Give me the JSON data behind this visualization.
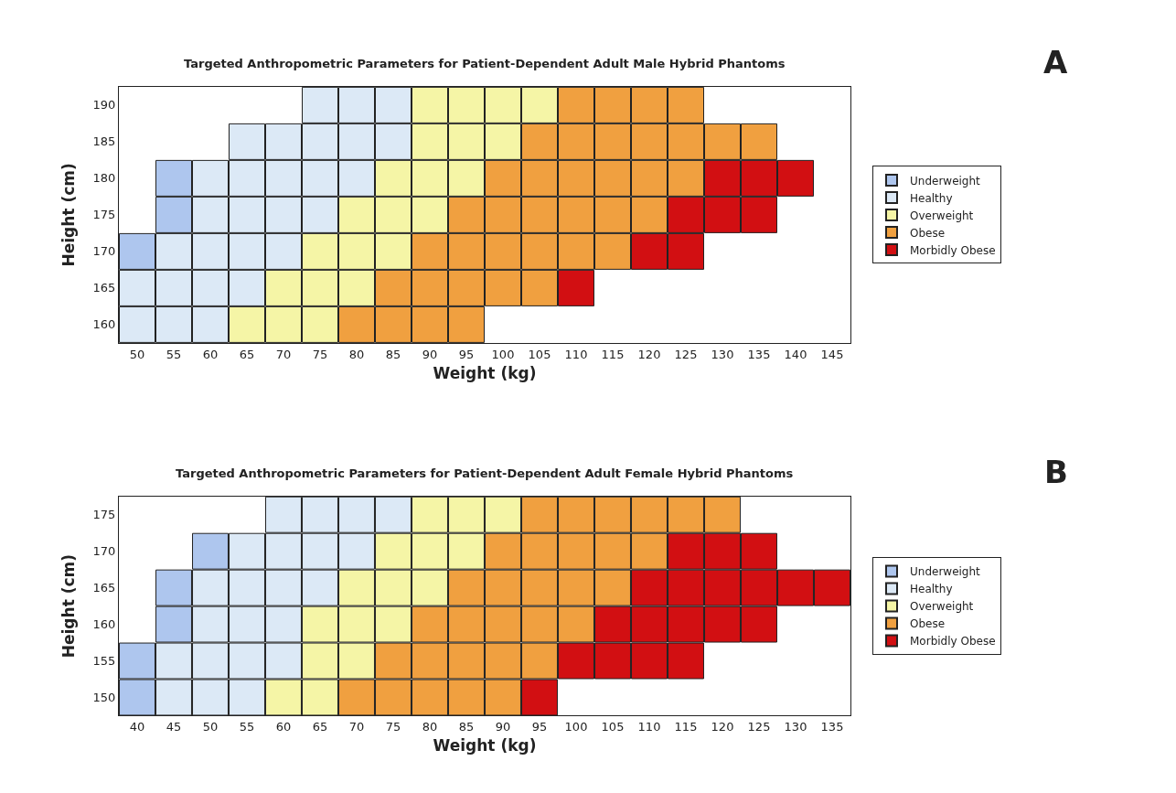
{
  "chart_data": [
    {
      "type": "scatter",
      "title": "Targeted Anthropometric Parameters for Patient-Dependent Adult Male Hybrid Phantoms",
      "annotations": [
        "A"
      ],
      "xlabel": "Weight (kg)",
      "ylabel": "Height (cm)",
      "xlim": [
        47.5,
        147.5
      ],
      "xticks": [
        50,
        55,
        60,
        65,
        70,
        75,
        80,
        85,
        90,
        95,
        100,
        105,
        110,
        115,
        120,
        125,
        130,
        135,
        140,
        145
      ],
      "ylim": [
        157.5,
        192.5
      ],
      "yticks": [
        160,
        165,
        170,
        175,
        180,
        185,
        190
      ],
      "marker": "square",
      "legend": "right",
      "series": [
        {
          "name": "Underweight",
          "color": "#aec6ee",
          "x": [
            55,
            55,
            50
          ],
          "values": [
            180,
            175,
            170
          ]
        },
        {
          "name": "Healthy",
          "color": "#dce9f6",
          "x": [
            75,
            80,
            85,
            65,
            70,
            75,
            80,
            85,
            60,
            65,
            70,
            75,
            80,
            60,
            65,
            70,
            75,
            55,
            60,
            65,
            70,
            50,
            55,
            60,
            65,
            50,
            55,
            60
          ],
          "values": [
            190,
            190,
            190,
            185,
            185,
            185,
            185,
            185,
            180,
            180,
            180,
            180,
            180,
            175,
            175,
            175,
            175,
            170,
            170,
            170,
            170,
            165,
            165,
            165,
            165,
            160,
            160,
            160
          ]
        },
        {
          "name": "Overweight",
          "color": "#f5f5a6",
          "x": [
            90,
            95,
            100,
            105,
            90,
            95,
            100,
            85,
            90,
            95,
            80,
            85,
            90,
            75,
            80,
            85,
            70,
            75,
            80,
            65,
            70,
            75
          ],
          "values": [
            190,
            190,
            190,
            190,
            185,
            185,
            185,
            180,
            180,
            180,
            175,
            175,
            175,
            170,
            170,
            170,
            165,
            165,
            165,
            160,
            160,
            160
          ]
        },
        {
          "name": "Obese",
          "color": "#f0a040",
          "x": [
            110,
            115,
            120,
            125,
            105,
            110,
            115,
            120,
            125,
            130,
            135,
            100,
            105,
            110,
            115,
            120,
            125,
            95,
            100,
            105,
            110,
            115,
            120,
            90,
            95,
            100,
            105,
            110,
            115,
            85,
            90,
            95,
            100,
            105,
            80,
            85,
            90,
            95
          ],
          "values": [
            190,
            190,
            190,
            190,
            185,
            185,
            185,
            185,
            185,
            185,
            185,
            180,
            180,
            180,
            180,
            180,
            180,
            175,
            175,
            175,
            175,
            175,
            175,
            170,
            170,
            170,
            170,
            170,
            170,
            165,
            165,
            165,
            165,
            165,
            160,
            160,
            160,
            160
          ]
        },
        {
          "name": "Morbidly Obese",
          "color": "#d20f12",
          "x": [
            130,
            135,
            140,
            125,
            130,
            135,
            120,
            125,
            110
          ],
          "values": [
            180,
            180,
            180,
            175,
            175,
            175,
            170,
            170,
            165
          ]
        }
      ]
    },
    {
      "type": "scatter",
      "title": "Targeted Anthropometric Parameters for Patient-Dependent Adult Female Hybrid Phantoms",
      "annotations": [
        "B"
      ],
      "xlabel": "Weight (kg)",
      "ylabel": "Height (cm)",
      "xlim": [
        37.5,
        137.5
      ],
      "xticks": [
        40,
        45,
        50,
        55,
        60,
        65,
        70,
        75,
        80,
        85,
        90,
        95,
        100,
        105,
        110,
        115,
        120,
        125,
        130,
        135
      ],
      "ylim": [
        147.5,
        177.5
      ],
      "yticks": [
        150,
        155,
        160,
        165,
        170,
        175
      ],
      "marker": "square",
      "legend": "right",
      "series": [
        {
          "name": "Underweight",
          "color": "#aec6ee",
          "x": [
            50,
            45,
            45,
            40,
            40
          ],
          "values": [
            170,
            165,
            160,
            155,
            150
          ]
        },
        {
          "name": "Healthy",
          "color": "#dce9f6",
          "x": [
            60,
            65,
            70,
            75,
            55,
            60,
            65,
            70,
            50,
            55,
            60,
            65,
            50,
            55,
            60,
            45,
            50,
            55,
            60,
            45,
            50,
            55
          ],
          "values": [
            175,
            175,
            175,
            175,
            170,
            170,
            170,
            170,
            165,
            165,
            165,
            165,
            160,
            160,
            160,
            155,
            155,
            155,
            155,
            150,
            150,
            150
          ]
        },
        {
          "name": "Overweight",
          "color": "#f5f5a6",
          "x": [
            80,
            85,
            90,
            75,
            80,
            85,
            70,
            75,
            80,
            65,
            70,
            75,
            65,
            70,
            60,
            65
          ],
          "values": [
            175,
            175,
            175,
            170,
            170,
            170,
            165,
            165,
            165,
            160,
            160,
            160,
            155,
            155,
            150,
            150
          ]
        },
        {
          "name": "Obese",
          "color": "#f0a040",
          "x": [
            95,
            100,
            105,
            110,
            115,
            120,
            90,
            95,
            100,
            105,
            110,
            85,
            90,
            95,
            100,
            105,
            80,
            85,
            90,
            95,
            100,
            75,
            80,
            85,
            90,
            95,
            70,
            75,
            80,
            85,
            90
          ],
          "values": [
            175,
            175,
            175,
            175,
            175,
            175,
            170,
            170,
            170,
            170,
            170,
            165,
            165,
            165,
            165,
            165,
            160,
            160,
            160,
            160,
            160,
            155,
            155,
            155,
            155,
            155,
            150,
            150,
            150,
            150,
            150
          ]
        },
        {
          "name": "Morbidly Obese",
          "color": "#d20f12",
          "x": [
            115,
            120,
            125,
            110,
            115,
            120,
            125,
            130,
            135,
            105,
            110,
            115,
            120,
            125,
            100,
            105,
            110,
            115,
            95
          ],
          "values": [
            170,
            170,
            170,
            165,
            165,
            165,
            165,
            165,
            165,
            160,
            160,
            160,
            160,
            160,
            155,
            155,
            155,
            155,
            150
          ]
        }
      ]
    }
  ]
}
